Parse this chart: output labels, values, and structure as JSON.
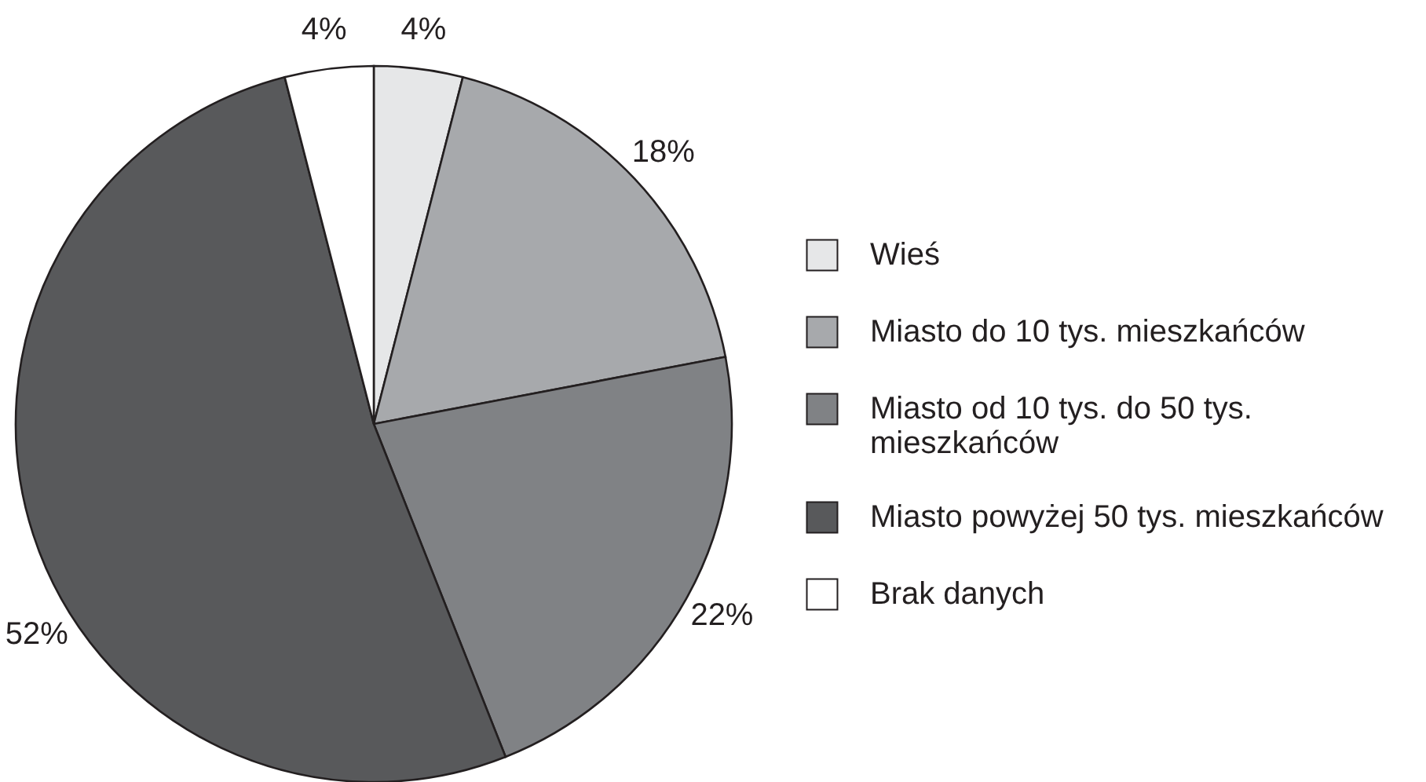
{
  "chart_data": {
    "type": "pie",
    "categories": [
      "Wieś",
      "Miasto do 10 tys. mieszkańców",
      "Miasto od 10 tys. do 50 tys. mieszkańców",
      "Miasto powyżej 50 tys. mieszkańców",
      "Brak danych"
    ],
    "values": [
      4,
      18,
      22,
      52,
      4
    ],
    "colors": [
      "#e6e7e8",
      "#a7a9ac",
      "#808285",
      "#58595b",
      "#ffffff"
    ],
    "value_labels": [
      "4%",
      "18%",
      "22%",
      "52%",
      "4%"
    ],
    "legend": "right"
  }
}
